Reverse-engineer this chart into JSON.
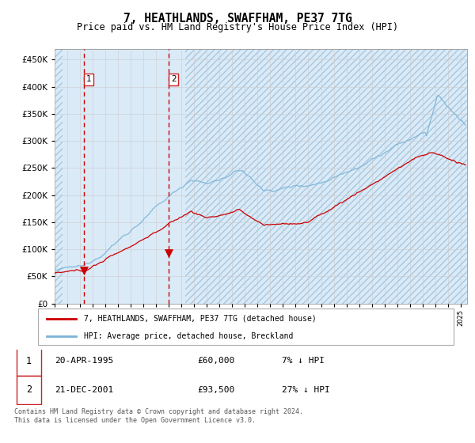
{
  "title": "7, HEATHLANDS, SWAFFHAM, PE37 7TG",
  "subtitle": "Price paid vs. HM Land Registry's House Price Index (HPI)",
  "xlim_start": 1993.0,
  "xlim_end": 2025.5,
  "ylim": [
    0,
    470000
  ],
  "yticks": [
    0,
    50000,
    100000,
    150000,
    200000,
    250000,
    300000,
    350000,
    400000,
    450000
  ],
  "transaction1": {
    "date_num": 1995.3,
    "price": 60000,
    "label": "1"
  },
  "transaction2": {
    "date_num": 2001.97,
    "price": 93500,
    "label": "2"
  },
  "legend_line1": "7, HEATHLANDS, SWAFFHAM, PE37 7TG (detached house)",
  "legend_line2": "HPI: Average price, detached house, Breckland",
  "table_row1": [
    "1",
    "20-APR-1995",
    "£60,000",
    "7% ↓ HPI"
  ],
  "table_row2": [
    "2",
    "21-DEC-2001",
    "£93,500",
    "27% ↓ HPI"
  ],
  "footer": "Contains HM Land Registry data © Crown copyright and database right 2024.\nThis data is licensed under the Open Government Licence v3.0.",
  "hpi_color": "#7ab4d8",
  "price_color": "#cc0000",
  "vline_color": "#cc0000",
  "shade_color": "#daeaf7",
  "grid_color": "#cccccc",
  "background_color": "#ffffff"
}
